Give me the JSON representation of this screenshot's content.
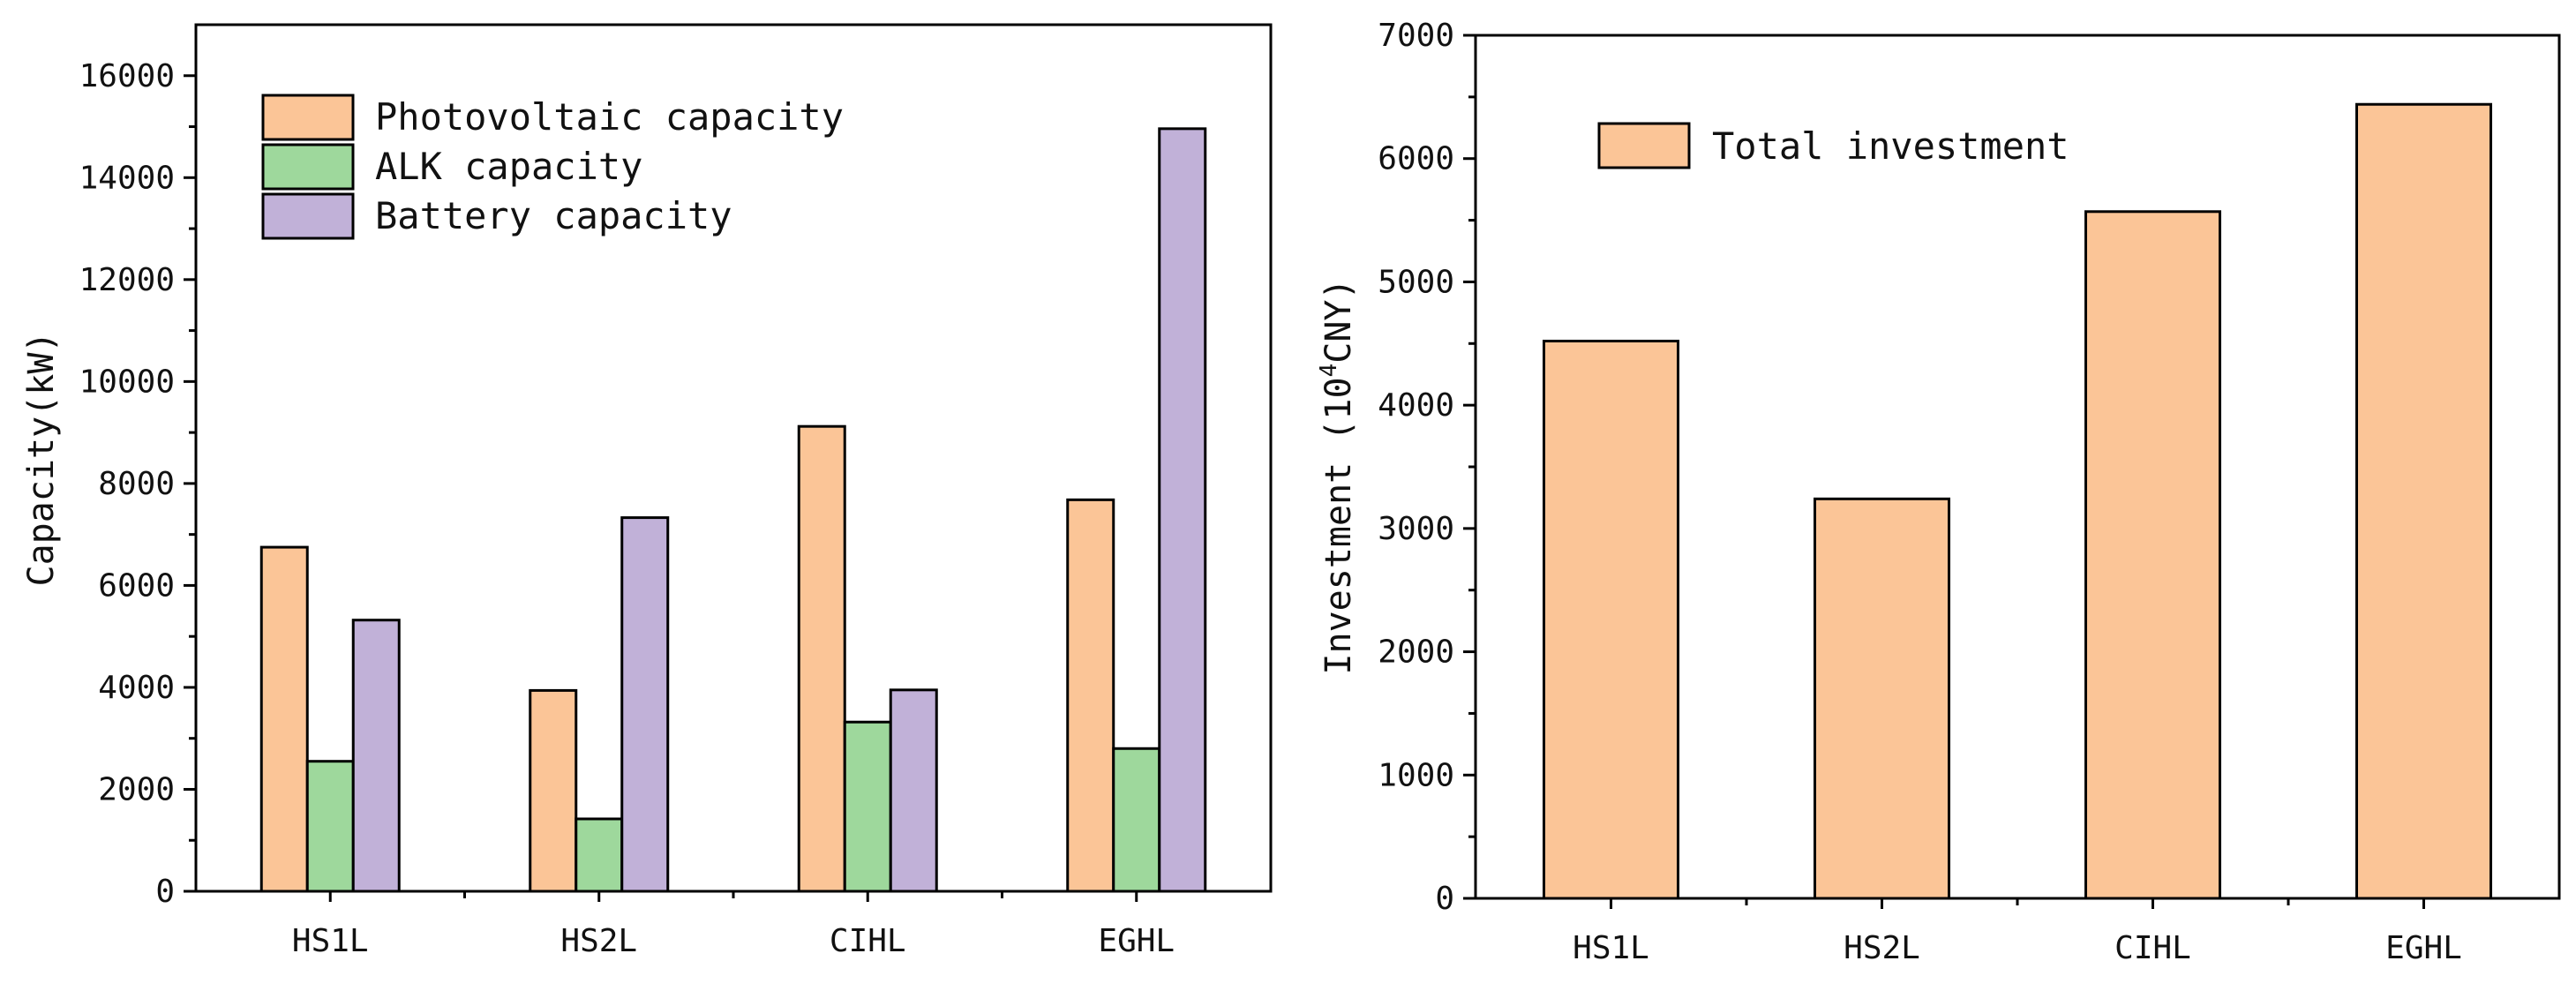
{
  "colors": {
    "photovoltaic": "#fbc597",
    "alk": "#9ed89c",
    "battery": "#c1b1d8",
    "investment": "#fbc597",
    "axis": "#000000"
  },
  "chart_data": [
    {
      "type": "bar",
      "title": "",
      "xlabel": "",
      "ylabel": "Capacity(kW)",
      "categories": [
        "HS1L",
        "HS2L",
        "CIHL",
        "EGHL"
      ],
      "series": [
        {
          "name": "Photovoltaic capacity",
          "values": [
            6750,
            3940,
            9120,
            7680
          ]
        },
        {
          "name": "ALK capacity",
          "values": [
            2550,
            1420,
            3320,
            2800
          ]
        },
        {
          "name": "Battery capacity",
          "values": [
            5320,
            7330,
            3950,
            14960
          ]
        }
      ],
      "ylim": [
        0,
        17000
      ],
      "yticks": [
        0,
        2000,
        4000,
        6000,
        8000,
        10000,
        12000,
        14000,
        16000
      ],
      "legend_position": "top-left",
      "grid": false
    },
    {
      "type": "bar",
      "title": "",
      "xlabel": "",
      "ylabel_main": "Investment (10",
      "ylabel_sup": "4",
      "ylabel_end": "CNY)",
      "categories": [
        "HS1L",
        "HS2L",
        "CIHL",
        "EGHL"
      ],
      "series": [
        {
          "name": "Total investment",
          "values": [
            4520,
            3240,
            5570,
            6440
          ]
        }
      ],
      "ylim": [
        0,
        7000
      ],
      "yticks": [
        0,
        1000,
        2000,
        3000,
        4000,
        5000,
        6000,
        7000
      ],
      "legend_position": "top-left",
      "grid": false
    }
  ]
}
